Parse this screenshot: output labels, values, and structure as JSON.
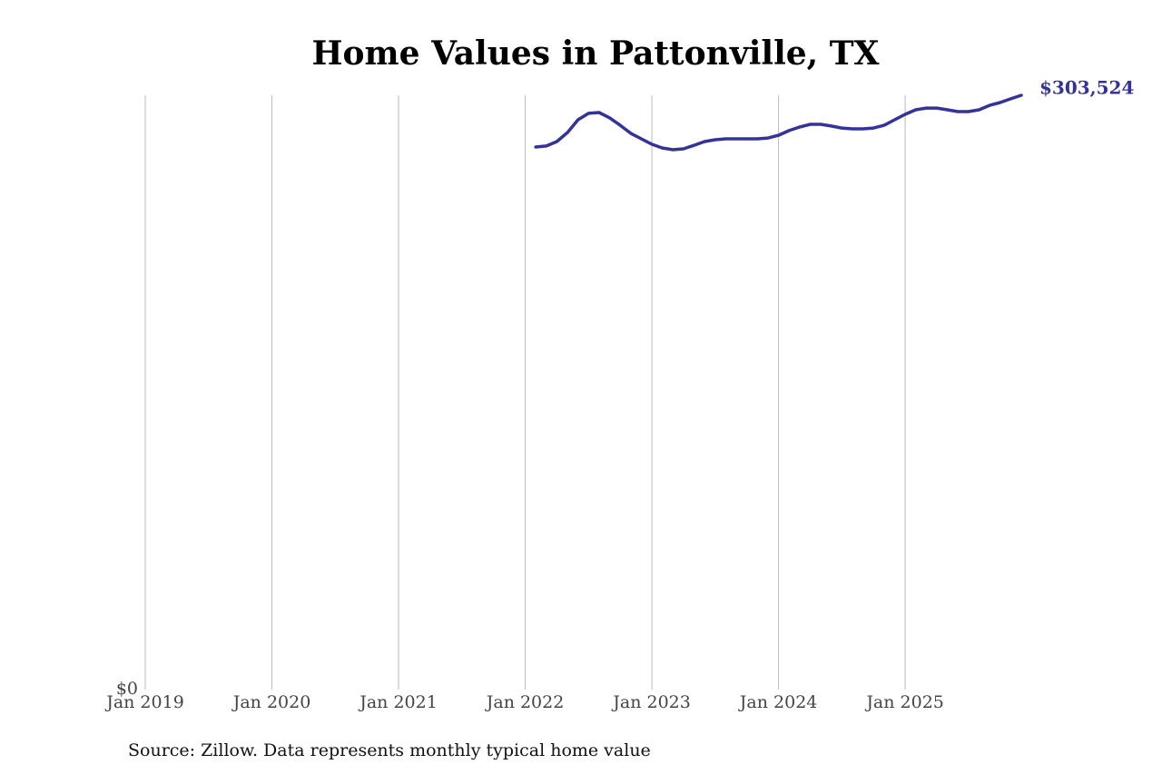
{
  "chart_data": {
    "type": "line",
    "title": "Home Values in Pattonville, TX",
    "source": "Source: Zillow. Data represents monthly typical home value",
    "series": [
      {
        "name": "Pattonville, TX",
        "color": "#333399",
        "x": [
          "2022-02",
          "2022-03",
          "2022-04",
          "2022-05",
          "2022-06",
          "2022-07",
          "2022-08",
          "2022-09",
          "2022-10",
          "2022-11",
          "2022-12",
          "2023-01",
          "2023-02",
          "2023-03",
          "2023-04",
          "2023-05",
          "2023-06",
          "2023-07",
          "2023-08",
          "2023-09",
          "2023-10",
          "2023-11",
          "2023-12",
          "2024-01",
          "2024-02",
          "2024-03",
          "2024-04",
          "2024-05",
          "2024-06",
          "2024-07",
          "2024-08",
          "2024-09",
          "2024-10",
          "2024-11",
          "2024-12",
          "2025-01",
          "2025-02",
          "2025-03",
          "2025-04",
          "2025-05",
          "2025-06",
          "2025-07",
          "2025-08",
          "2025-09",
          "2025-10",
          "2025-11",
          "2025-12"
        ],
        "values": [
          277100,
          277600,
          279900,
          284500,
          291000,
          294300,
          294700,
          292000,
          288200,
          284100,
          281300,
          278500,
          276600,
          275700,
          276200,
          278000,
          279900,
          280800,
          281300,
          281300,
          281300,
          281300,
          281700,
          283100,
          285500,
          287300,
          288700,
          288700,
          287800,
          286800,
          286400,
          286400,
          286800,
          288200,
          291000,
          293800,
          296100,
          297000,
          297000,
          296100,
          295200,
          295200,
          296100,
          298400,
          299800,
          301700,
          303524
        ],
        "value_labels": [
          null,
          null,
          null,
          null,
          null,
          null,
          null,
          null,
          null,
          null,
          null,
          null,
          null,
          null,
          null,
          null,
          null,
          null,
          null,
          null,
          null,
          null,
          null,
          null,
          null,
          null,
          null,
          null,
          null,
          null,
          null,
          null,
          null,
          null,
          null,
          null,
          null,
          null,
          null,
          null,
          null,
          null,
          null,
          null,
          null,
          null,
          "$303,524"
        ]
      }
    ],
    "xlim": [
      "2019-01",
      "2025-12"
    ],
    "xticks": [
      {
        "value": "2019-01",
        "label": "Jan 2019"
      },
      {
        "value": "2020-01",
        "label": "Jan 2020"
      },
      {
        "value": "2021-01",
        "label": "Jan 2021"
      },
      {
        "value": "2022-01",
        "label": "Jan 2022"
      },
      {
        "value": "2023-01",
        "label": "Jan 2023"
      },
      {
        "value": "2024-01",
        "label": "Jan 2024"
      },
      {
        "value": "2025-01",
        "label": "Jan 2025"
      }
    ],
    "ylim": [
      0,
      303524
    ],
    "yticks": [
      {
        "value": 0,
        "label": "$0"
      }
    ],
    "grid": true
  }
}
